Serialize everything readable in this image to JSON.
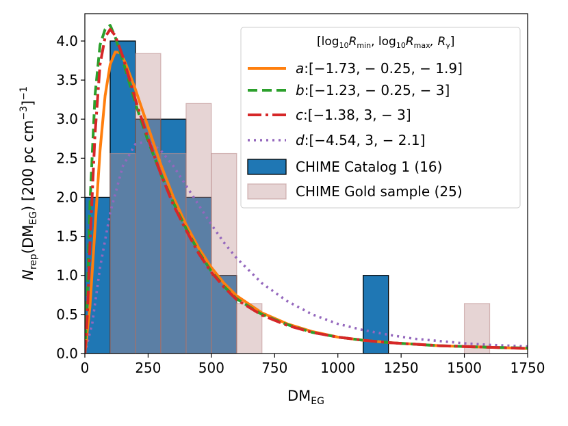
{
  "chart_data": {
    "type": "bar",
    "xlabel_main": "DM",
    "xlabel_sub": "EG",
    "ylabel": {
      "n": "N",
      "n_sub": "rep",
      "arg": "(DM",
      "arg_sub": "EG",
      "close": ") [200 pc cm",
      "exp1": "−3",
      "close2": "]",
      "exp2": "−1"
    },
    "xlim": [
      0,
      1750
    ],
    "ylim": [
      0,
      4.35
    ],
    "xticks": [
      0,
      250,
      500,
      750,
      1000,
      1250,
      1500,
      1750
    ],
    "yticks": [
      0.0,
      0.5,
      1.0,
      1.5,
      2.0,
      2.5,
      3.0,
      3.5,
      4.0
    ],
    "bin_width": 100,
    "series": [
      {
        "name": "CHIME Catalog 1 (16)",
        "kind": "hist",
        "color": "#1f77b4",
        "bins": [
          {
            "x": 0,
            "v": 2.0
          },
          {
            "x": 100,
            "v": 4.0
          },
          {
            "x": 200,
            "v": 3.0
          },
          {
            "x": 300,
            "v": 3.0
          },
          {
            "x": 400,
            "v": 2.0
          },
          {
            "x": 500,
            "v": 1.0
          },
          {
            "x": 1100,
            "v": 1.0
          }
        ]
      },
      {
        "name": "CHIME Gold sample (25)",
        "kind": "hist",
        "color": "#bc8f8f",
        "bins": [
          {
            "x": 100,
            "v": 2.56
          },
          {
            "x": 200,
            "v": 3.84
          },
          {
            "x": 300,
            "v": 2.56
          },
          {
            "x": 400,
            "v": 3.2
          },
          {
            "x": 500,
            "v": 2.56
          },
          {
            "x": 600,
            "v": 0.64
          },
          {
            "x": 1500,
            "v": 0.64
          }
        ]
      },
      {
        "name": "a",
        "label": ":[−1.73, − 0.25, − 1.9]",
        "kind": "line",
        "color": "#ff7f0e",
        "dash": "",
        "points": [
          [
            0,
            0
          ],
          [
            20,
            0.6
          ],
          [
            40,
            1.6
          ],
          [
            60,
            2.6
          ],
          [
            80,
            3.3
          ],
          [
            100,
            3.7
          ],
          [
            120,
            3.86
          ],
          [
            140,
            3.85
          ],
          [
            160,
            3.72
          ],
          [
            200,
            3.38
          ],
          [
            250,
            2.9
          ],
          [
            300,
            2.42
          ],
          [
            350,
            2.0
          ],
          [
            400,
            1.65
          ],
          [
            450,
            1.35
          ],
          [
            500,
            1.1
          ],
          [
            550,
            0.9
          ],
          [
            600,
            0.74
          ],
          [
            700,
            0.52
          ],
          [
            800,
            0.38
          ],
          [
            900,
            0.28
          ],
          [
            1000,
            0.21
          ],
          [
            1100,
            0.17
          ],
          [
            1200,
            0.14
          ],
          [
            1300,
            0.12
          ],
          [
            1400,
            0.1
          ],
          [
            1500,
            0.09
          ],
          [
            1600,
            0.08
          ],
          [
            1750,
            0.065
          ]
        ]
      },
      {
        "name": "b",
        "label": ":[−1.23, − 0.25,    − 3]",
        "kind": "line",
        "color": "#2ca02c",
        "dash": "14,7",
        "points": [
          [
            0,
            0
          ],
          [
            10,
            0.8
          ],
          [
            20,
            1.9
          ],
          [
            40,
            3.3
          ],
          [
            60,
            3.95
          ],
          [
            80,
            4.15
          ],
          [
            100,
            4.2
          ],
          [
            120,
            4.05
          ],
          [
            150,
            3.75
          ],
          [
            200,
            3.2
          ],
          [
            250,
            2.72
          ],
          [
            300,
            2.3
          ],
          [
            350,
            1.93
          ],
          [
            400,
            1.6
          ],
          [
            450,
            1.3
          ],
          [
            500,
            1.05
          ],
          [
            550,
            0.86
          ],
          [
            600,
            0.7
          ],
          [
            700,
            0.5
          ],
          [
            800,
            0.37
          ],
          [
            900,
            0.27
          ],
          [
            1000,
            0.21
          ],
          [
            1100,
            0.17
          ],
          [
            1200,
            0.14
          ],
          [
            1300,
            0.12
          ],
          [
            1400,
            0.1
          ],
          [
            1500,
            0.09
          ],
          [
            1600,
            0.08
          ],
          [
            1750,
            0.07
          ]
        ]
      },
      {
        "name": "c",
        "label": ":[−1.38,          3,    − 3]",
        "kind": "line",
        "color": "#d62728",
        "dash": "20,6,4,6",
        "points": [
          [
            0,
            0
          ],
          [
            10,
            0.5
          ],
          [
            20,
            1.4
          ],
          [
            40,
            2.8
          ],
          [
            60,
            3.7
          ],
          [
            80,
            4.05
          ],
          [
            100,
            4.15
          ],
          [
            120,
            4.07
          ],
          [
            150,
            3.8
          ],
          [
            200,
            3.25
          ],
          [
            250,
            2.75
          ],
          [
            300,
            2.3
          ],
          [
            350,
            1.9
          ],
          [
            400,
            1.58
          ],
          [
            450,
            1.28
          ],
          [
            500,
            1.04
          ],
          [
            550,
            0.85
          ],
          [
            600,
            0.69
          ],
          [
            700,
            0.49
          ],
          [
            800,
            0.36
          ],
          [
            900,
            0.27
          ],
          [
            1000,
            0.21
          ],
          [
            1100,
            0.17
          ],
          [
            1200,
            0.14
          ],
          [
            1300,
            0.12
          ],
          [
            1400,
            0.1
          ],
          [
            1500,
            0.09
          ],
          [
            1600,
            0.08
          ],
          [
            1750,
            0.065
          ]
        ]
      },
      {
        "name": "d",
        "label": ":[−4.54,          3, − 2.1]",
        "kind": "line",
        "color": "#9467bd",
        "dash": "3,6",
        "points": [
          [
            0,
            0
          ],
          [
            30,
            0.4
          ],
          [
            60,
            1.1
          ],
          [
            100,
            1.8
          ],
          [
            150,
            2.4
          ],
          [
            200,
            2.68
          ],
          [
            250,
            2.72
          ],
          [
            300,
            2.6
          ],
          [
            350,
            2.4
          ],
          [
            400,
            2.15
          ],
          [
            450,
            1.9
          ],
          [
            500,
            1.65
          ],
          [
            550,
            1.42
          ],
          [
            600,
            1.22
          ],
          [
            700,
            0.9
          ],
          [
            800,
            0.67
          ],
          [
            900,
            0.5
          ],
          [
            1000,
            0.38
          ],
          [
            1100,
            0.3
          ],
          [
            1200,
            0.24
          ],
          [
            1300,
            0.19
          ],
          [
            1400,
            0.16
          ],
          [
            1500,
            0.13
          ],
          [
            1600,
            0.11
          ],
          [
            1750,
            0.09
          ]
        ]
      }
    ],
    "legend": {
      "placement": "top-right",
      "header": "[log₁₀R_min, log₁₀R_max, R_γ]",
      "header_parts": [
        "[log",
        "10",
        "R",
        "min",
        ", log",
        "10",
        "R",
        "max",
        ", R",
        "γ",
        "]"
      ]
    }
  }
}
